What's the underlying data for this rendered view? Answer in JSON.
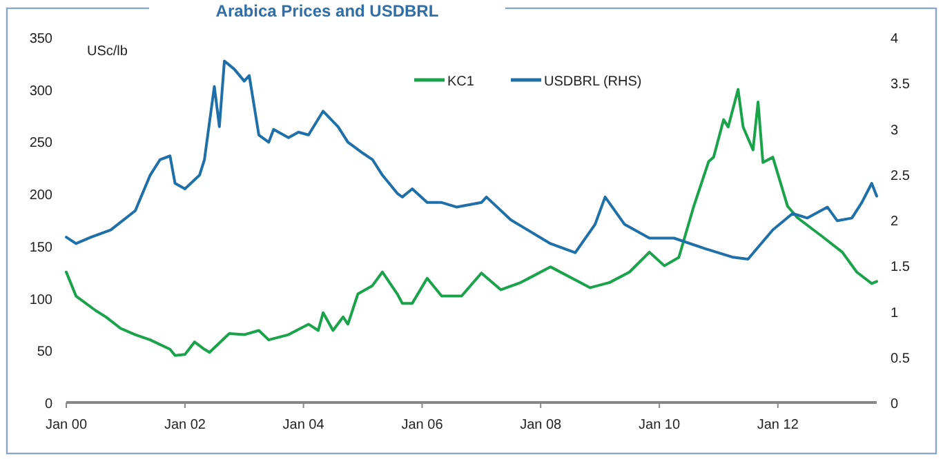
{
  "chart_data": {
    "type": "line",
    "title": "Arabica Prices and USDBRL",
    "ylabel": "USc/lb",
    "legend": "top",
    "grid": false,
    "marker": "none",
    "line_style": "solid",
    "xlim": [
      "2000-01",
      "2013-09"
    ],
    "xticks": [
      {
        "value": "2000-01",
        "label": "Jan 00"
      },
      {
        "value": "2002-01",
        "label": "Jan 02"
      },
      {
        "value": "2004-01",
        "label": "Jan 04"
      },
      {
        "value": "2006-01",
        "label": "Jan 06"
      },
      {
        "value": "2008-01",
        "label": "Jan 08"
      },
      {
        "value": "2010-01",
        "label": "Jan 10"
      },
      {
        "value": "2012-01",
        "label": "Jan 12"
      }
    ],
    "ylim": [
      0,
      350
    ],
    "yticks": [
      0,
      50,
      100,
      150,
      200,
      250,
      300,
      350
    ],
    "y2lim": [
      0,
      4
    ],
    "y2ticks": [
      0,
      0.5,
      1,
      1.5,
      2,
      2.5,
      3,
      3.5,
      4
    ],
    "series": [
      {
        "name": "KC1",
        "color": "#1aa34a",
        "x": [
          "2000-01",
          "2000-03",
          "2000-07",
          "2000-09",
          "2000-12",
          "2001-03",
          "2001-06",
          "2001-10",
          "2001-11",
          "2002-01",
          "2002-03",
          "2002-05",
          "2002-06",
          "2002-10",
          "2003-01",
          "2003-04",
          "2003-06",
          "2003-10",
          "2004-02",
          "2004-04",
          "2004-05",
          "2004-07",
          "2004-09",
          "2004-10",
          "2004-12",
          "2005-03",
          "2005-05",
          "2005-08",
          "2005-09",
          "2005-11",
          "2006-02",
          "2006-05",
          "2006-09",
          "2007-01",
          "2007-05",
          "2007-09",
          "2008-03",
          "2008-11",
          "2009-03",
          "2009-07",
          "2009-11",
          "2010-02",
          "2010-05",
          "2010-08",
          "2010-11",
          "2010-12",
          "2011-02",
          "2011-03",
          "2011-05",
          "2011-06",
          "2011-08",
          "2011-09",
          "2011-10",
          "2011-12",
          "2012-03",
          "2012-05",
          "2012-10",
          "2013-02",
          "2013-05",
          "2013-08",
          "2013-09"
        ],
        "values": [
          125,
          102,
          88,
          82,
          71,
          65,
          60,
          51,
          45,
          46,
          58,
          51,
          48,
          66,
          65,
          69,
          60,
          65,
          75,
          69,
          86,
          69,
          82,
          75,
          104,
          112,
          125,
          104,
          95,
          95,
          119,
          102,
          102,
          124,
          108,
          115,
          130,
          110,
          115,
          125,
          144,
          131,
          139,
          188,
          231,
          235,
          271,
          264,
          300,
          264,
          242,
          288,
          230,
          235,
          188,
          177,
          159,
          144,
          125,
          114,
          116
        ]
      },
      {
        "name": "USDBRL (RHS)",
        "color": "#1f6fa8",
        "axis": "y2",
        "x": [
          "2000-01",
          "2000-03",
          "2000-06",
          "2000-10",
          "2001-03",
          "2001-06",
          "2001-08",
          "2001-10",
          "2001-11",
          "2002-01",
          "2002-04",
          "2002-05",
          "2002-07",
          "2002-08",
          "2002-09",
          "2002-11",
          "2003-01",
          "2003-02",
          "2003-04",
          "2003-06",
          "2003-07",
          "2003-10",
          "2003-12",
          "2004-02",
          "2004-05",
          "2004-08",
          "2004-10",
          "2005-01",
          "2005-03",
          "2005-05",
          "2005-08",
          "2005-09",
          "2005-11",
          "2006-02",
          "2006-05",
          "2006-08",
          "2007-01",
          "2007-02",
          "2007-07",
          "2008-03",
          "2008-08",
          "2008-12",
          "2009-02",
          "2009-06",
          "2009-11",
          "2010-04",
          "2010-10",
          "2011-04",
          "2011-07",
          "2011-12",
          "2012-04",
          "2012-07",
          "2012-11",
          "2013-01",
          "2013-04",
          "2013-06",
          "2013-08",
          "2013-09"
        ],
        "values": [
          1.81,
          1.74,
          1.81,
          1.89,
          2.1,
          2.49,
          2.66,
          2.7,
          2.4,
          2.34,
          2.49,
          2.66,
          3.46,
          3.02,
          3.74,
          3.65,
          3.52,
          3.58,
          2.93,
          2.85,
          2.99,
          2.9,
          2.96,
          2.93,
          3.19,
          3.02,
          2.85,
          2.73,
          2.66,
          2.49,
          2.29,
          2.25,
          2.34,
          2.19,
          2.19,
          2.14,
          2.19,
          2.25,
          2.0,
          1.74,
          1.64,
          1.95,
          2.25,
          1.95,
          1.8,
          1.8,
          1.69,
          1.59,
          1.57,
          1.89,
          2.07,
          2.02,
          2.14,
          1.99,
          2.02,
          2.19,
          2.4,
          2.26
        ]
      }
    ]
  }
}
